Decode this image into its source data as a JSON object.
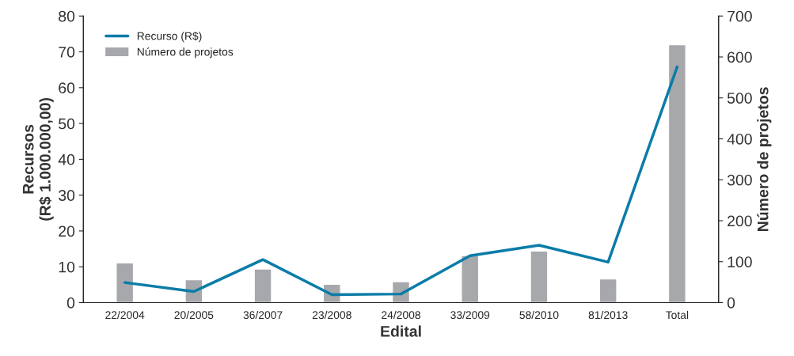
{
  "chart_data": {
    "type": "bar",
    "xlabel": "Edital",
    "ylabel": "Recursos\n(R$ 1.000.000,00)",
    "y2label": "Número de projetos",
    "categories": [
      "22/2004",
      "20/2005",
      "36/2007",
      "23/2008",
      "24/2008",
      "33/2009",
      "58/2010",
      "81/2013",
      "Total"
    ],
    "series": [
      {
        "name": "Recurso (R$)",
        "type": "line",
        "color": "#0a7ca8",
        "values": [
          5.6,
          3.1,
          12.0,
          2.2,
          2.4,
          13.1,
          16.0,
          11.3,
          65.8
        ]
      },
      {
        "name": "Número de projetos",
        "axis": "y2",
        "color": "#a6a8ab",
        "values": [
          97,
          56,
          82,
          45,
          51,
          115,
          126,
          58,
          630
        ]
      }
    ],
    "ylim": [
      0,
      80
    ],
    "yticks": [
      0,
      10,
      20,
      30,
      40,
      50,
      60,
      70,
      80
    ],
    "y2lim": [
      0,
      700
    ],
    "y2ticks": [
      0,
      100,
      200,
      300,
      400,
      500,
      600,
      700
    ],
    "legend": "top left",
    "grid": false
  }
}
